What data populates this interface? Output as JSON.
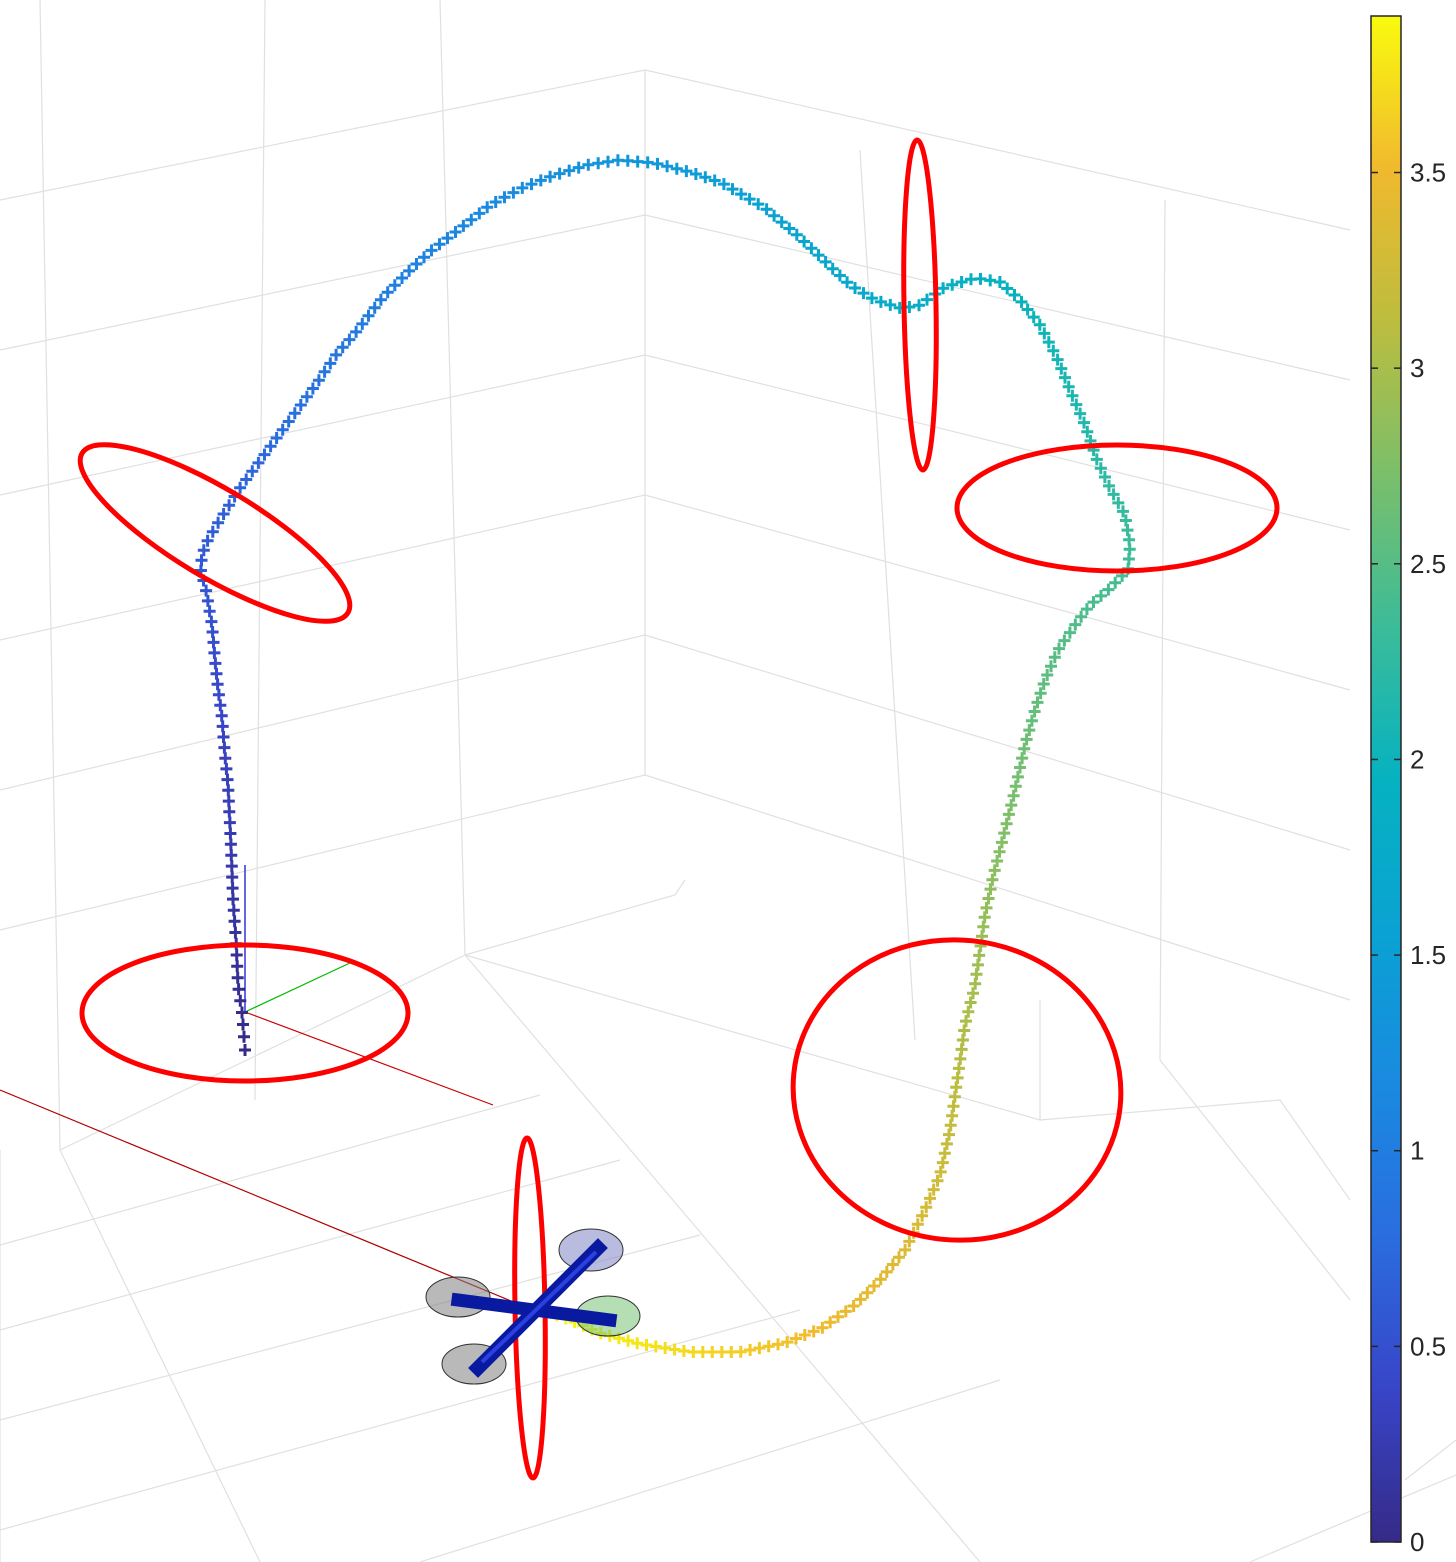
{
  "chart_data": {
    "type": "scatter",
    "title": "",
    "xlabel": "",
    "ylabel": "",
    "zlabel": "",
    "grid": true,
    "marker": "+",
    "colormap": "parula",
    "colorbar": {
      "location": "right",
      "clim": [
        0,
        3.9
      ],
      "ticks": [
        0,
        0.5,
        1,
        1.5,
        2,
        2.5,
        3,
        3.5
      ],
      "tick_labels": [
        "0",
        "0.5",
        "1",
        "1.5",
        "2",
        "2.5",
        "3",
        "3.5"
      ]
    },
    "series": [
      {
        "marker": "+",
        "color_by": "time",
        "t_range": [
          0,
          3.9
        ]
      }
    ],
    "gates": {
      "count": 6,
      "color": "#ff0000",
      "shape": "ellipse"
    },
    "quadrotor": {
      "arm_color": "#0a1aa0",
      "rotor_colors": [
        "#808080",
        "#8a8fc8",
        "#79c279",
        "#808080"
      ]
    },
    "body_axes_colors": [
      "#cc0000",
      "#00bb00",
      "#0000cc"
    ]
  }
}
